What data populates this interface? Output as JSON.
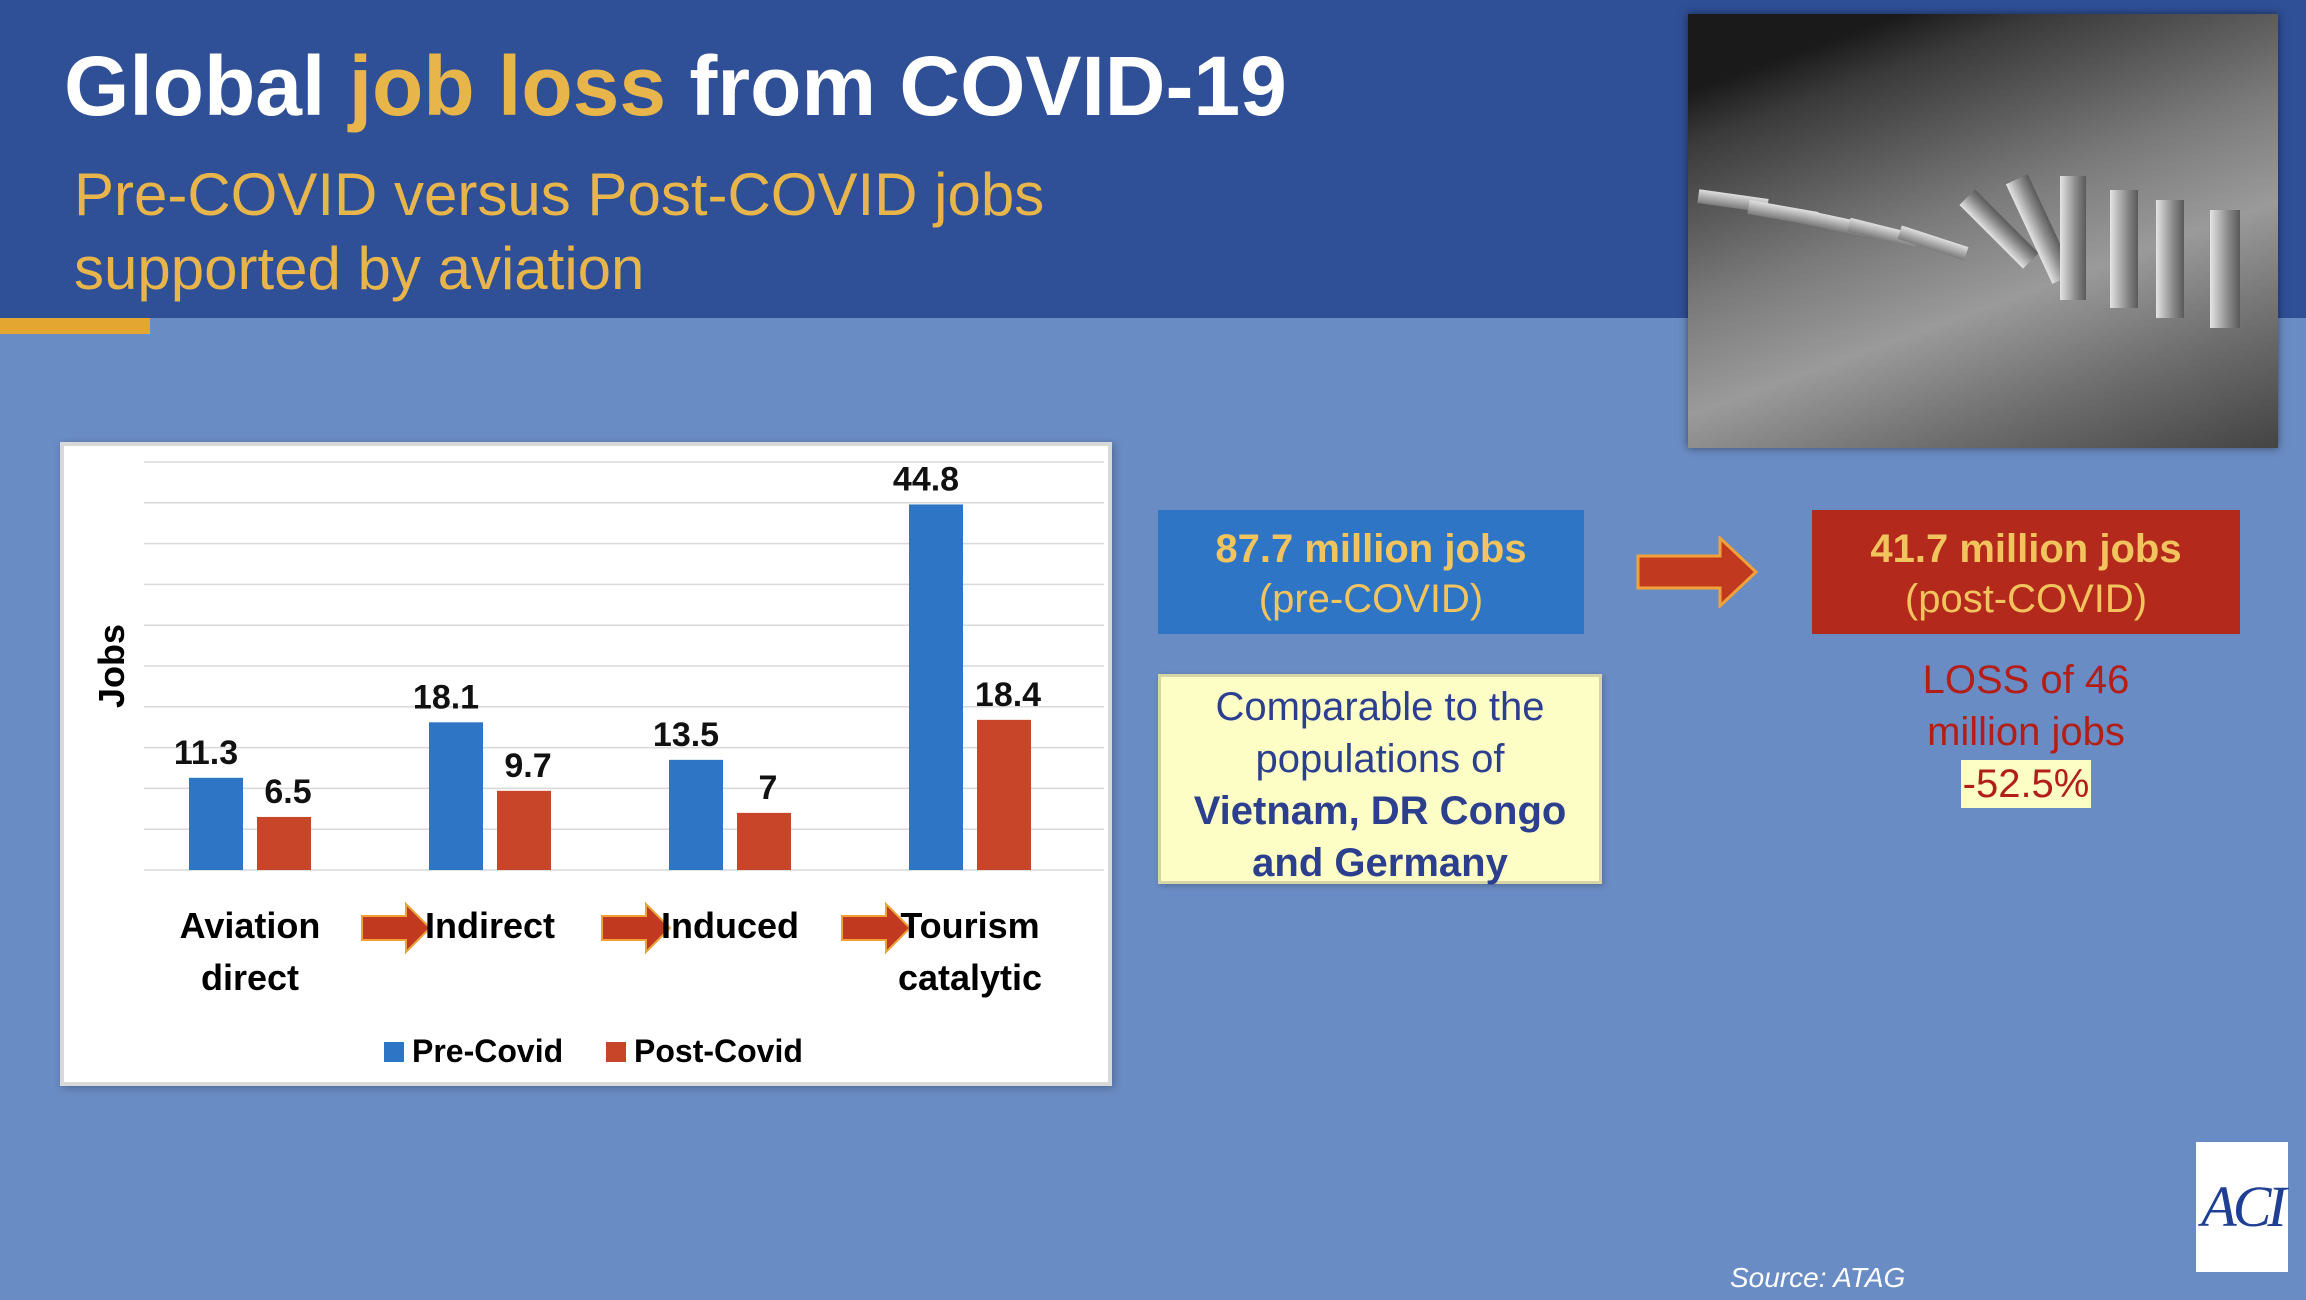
{
  "slide": {
    "title_part1": "Global ",
    "title_highlight": "job loss",
    "title_part2": " from COVID-19",
    "subtitle_line1": "Pre-COVID versus Post-COVID jobs",
    "subtitle_line2": "supported by aviation",
    "source": "Source: ATAG",
    "logo_text": "ACI"
  },
  "callouts": {
    "pre_big": "87.7 million jobs",
    "pre_small": "(pre-COVID)",
    "post_big": "41.7 million jobs",
    "post_small": "(post-COVID)",
    "loss_line1": "LOSS of 46",
    "loss_line2": "million jobs",
    "loss_pct": "-52.5%",
    "note_line1": "Comparable to the",
    "note_line2": "populations of",
    "note_line3": "Vietnam, DR Congo",
    "note_line4": "and Germany"
  },
  "chart_data": {
    "type": "bar",
    "ylabel": "Jobs",
    "ylim": [
      0,
      50
    ],
    "grid": true,
    "legend_position": "bottom",
    "categories": [
      [
        "Aviation",
        "direct"
      ],
      [
        "Indirect"
      ],
      [
        "Induced"
      ],
      [
        "Tourism",
        "catalytic"
      ]
    ],
    "series": [
      {
        "name": "Pre-Covid",
        "color": "#2e75c5",
        "values": [
          11.3,
          18.1,
          13.5,
          44.8
        ],
        "labels": [
          "11.3",
          "18.1",
          "13.5",
          "44.8"
        ]
      },
      {
        "name": "Post-Covid",
        "color": "#c8452a",
        "values": [
          6.5,
          9.7,
          7,
          18.4
        ],
        "labels": [
          "6.5",
          "9.7",
          "7",
          "18.4"
        ]
      }
    ]
  }
}
